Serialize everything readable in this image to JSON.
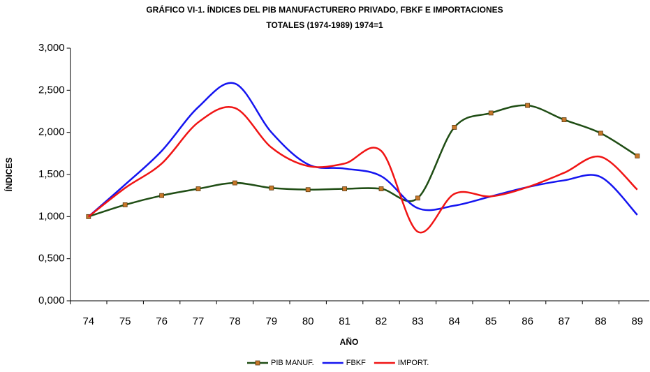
{
  "chart_data": {
    "type": "line",
    "title": [
      "GRÁFICO VI-1. ÍNDICES DEL PIB MANUFACTURERO PRIVADO, FBKF E IMPORTACIONES",
      "TOTALES (1974-1989) 1974=1"
    ],
    "x_label": "AÑO",
    "y_label": "ÍNDICES",
    "categories": [
      "74",
      "75",
      "76",
      "77",
      "78",
      "79",
      "80",
      "81",
      "82",
      "83",
      "84",
      "85",
      "86",
      "87",
      "88",
      "89"
    ],
    "series": [
      {
        "name": "PIB MANUF.",
        "color": "#1f4d14",
        "marker": "square",
        "marker_color": "#c8782a",
        "values": [
          1.0,
          1.14,
          1.25,
          1.33,
          1.4,
          1.34,
          1.32,
          1.33,
          1.33,
          1.22,
          2.06,
          2.23,
          2.32,
          2.15,
          1.99,
          1.72
        ]
      },
      {
        "name": "FBKF",
        "color": "#1414f0",
        "values": [
          1.0,
          1.38,
          1.78,
          2.3,
          2.58,
          2.0,
          1.62,
          1.57,
          1.48,
          1.1,
          1.13,
          1.24,
          1.35,
          1.43,
          1.47,
          1.02
        ]
      },
      {
        "name": "IMPORT.",
        "color": "#f01414",
        "values": [
          1.0,
          1.34,
          1.63,
          2.12,
          2.29,
          1.82,
          1.6,
          1.63,
          1.78,
          0.82,
          1.27,
          1.24,
          1.35,
          1.52,
          1.71,
          1.32
        ]
      }
    ],
    "ylim": [
      0,
      3
    ],
    "yticks": [
      {
        "value": 0,
        "label": "0,000"
      },
      {
        "value": 0.5,
        "label": "0,500"
      },
      {
        "value": 1,
        "label": "1,000"
      },
      {
        "value": 1.5,
        "label": "1,500"
      },
      {
        "value": 2,
        "label": "2,000"
      },
      {
        "value": 2.5,
        "label": "2,500"
      },
      {
        "value": 3,
        "label": "3,000"
      }
    ],
    "legend": "bottom"
  }
}
